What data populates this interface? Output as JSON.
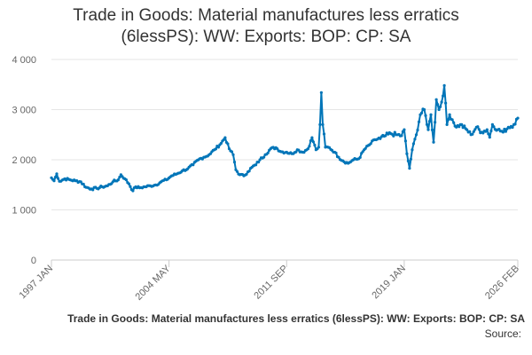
{
  "chart_data": {
    "type": "line",
    "title_line1": "Trade in Goods: Material manufactures less erratics",
    "title_line2": "(6lessPS): WW: Exports: BOP: CP: SA",
    "caption": "Trade in Goods: Material manufactures less erratics (6lessPS): WW: Exports: BOP: CP: SA",
    "source_label": "Source:",
    "ylim": [
      0,
      4000
    ],
    "y_ticks": [
      {
        "value": 0,
        "label": "0"
      },
      {
        "value": 1000,
        "label": "1 000"
      },
      {
        "value": 2000,
        "label": "2 000"
      },
      {
        "value": 3000,
        "label": "3 000"
      },
      {
        "value": 4000,
        "label": "4 000"
      }
    ],
    "x_ticks": [
      {
        "index": 0,
        "label": "1997 JAN"
      },
      {
        "index": 88,
        "label": "2004 MAY"
      },
      {
        "index": 176,
        "label": "2011 SEP"
      },
      {
        "index": 264,
        "label": "2019 JAN"
      },
      {
        "index": 349,
        "label": "2026 FEB"
      }
    ],
    "series": [
      {
        "name": "Trade in Goods: Material manufactures less erratics (6lessPS): WW: Exports: BOP: CP: SA",
        "color": "#0075b8",
        "anchors": [
          [
            0,
            1640
          ],
          [
            2,
            1580
          ],
          [
            4,
            1720
          ],
          [
            6,
            1570
          ],
          [
            10,
            1620
          ],
          [
            14,
            1600
          ],
          [
            18,
            1580
          ],
          [
            22,
            1560
          ],
          [
            26,
            1450
          ],
          [
            30,
            1420
          ],
          [
            34,
            1430
          ],
          [
            38,
            1460
          ],
          [
            42,
            1480
          ],
          [
            46,
            1560
          ],
          [
            50,
            1600
          ],
          [
            52,
            1700
          ],
          [
            55,
            1620
          ],
          [
            58,
            1520
          ],
          [
            61,
            1380
          ],
          [
            63,
            1460
          ],
          [
            66,
            1440
          ],
          [
            70,
            1460
          ],
          [
            74,
            1480
          ],
          [
            78,
            1500
          ],
          [
            82,
            1560
          ],
          [
            86,
            1600
          ],
          [
            90,
            1680
          ],
          [
            94,
            1720
          ],
          [
            98,
            1780
          ],
          [
            102,
            1820
          ],
          [
            106,
            1900
          ],
          [
            110,
            2000
          ],
          [
            114,
            2050
          ],
          [
            118,
            2100
          ],
          [
            122,
            2200
          ],
          [
            126,
            2300
          ],
          [
            130,
            2440
          ],
          [
            133,
            2220
          ],
          [
            136,
            2100
          ],
          [
            138,
            1800
          ],
          [
            141,
            1700
          ],
          [
            144,
            1680
          ],
          [
            147,
            1760
          ],
          [
            150,
            1850
          ],
          [
            153,
            1900
          ],
          [
            156,
            2000
          ],
          [
            160,
            2100
          ],
          [
            164,
            2220
          ],
          [
            168,
            2240
          ],
          [
            172,
            2160
          ],
          [
            176,
            2150
          ],
          [
            180,
            2120
          ],
          [
            184,
            2200
          ],
          [
            188,
            2150
          ],
          [
            192,
            2220
          ],
          [
            195,
            2440
          ],
          [
            198,
            2200
          ],
          [
            200,
            2250
          ],
          [
            201,
            2700
          ],
          [
            202,
            3340
          ],
          [
            203,
            2700
          ],
          [
            205,
            2250
          ],
          [
            208,
            2240
          ],
          [
            212,
            2150
          ],
          [
            215,
            2050
          ],
          [
            218,
            1980
          ],
          [
            222,
            1930
          ],
          [
            226,
            2000
          ],
          [
            230,
            2020
          ],
          [
            234,
            2200
          ],
          [
            238,
            2300
          ],
          [
            242,
            2400
          ],
          [
            246,
            2420
          ],
          [
            250,
            2480
          ],
          [
            254,
            2520
          ],
          [
            258,
            2500
          ],
          [
            262,
            2480
          ],
          [
            264,
            2600
          ],
          [
            266,
            2120
          ],
          [
            268,
            1830
          ],
          [
            270,
            2200
          ],
          [
            273,
            2500
          ],
          [
            276,
            2900
          ],
          [
            279,
            3000
          ],
          [
            282,
            2600
          ],
          [
            284,
            2900
          ],
          [
            286,
            2350
          ],
          [
            288,
            3200
          ],
          [
            290,
            3000
          ],
          [
            292,
            3150
          ],
          [
            294,
            3480
          ],
          [
            296,
            2700
          ],
          [
            298,
            2900
          ],
          [
            300,
            2800
          ],
          [
            303,
            2650
          ],
          [
            306,
            2700
          ],
          [
            310,
            2620
          ],
          [
            314,
            2500
          ],
          [
            318,
            2650
          ],
          [
            322,
            2550
          ],
          [
            326,
            2600
          ],
          [
            328,
            2450
          ],
          [
            330,
            2700
          ],
          [
            334,
            2600
          ],
          [
            338,
            2550
          ],
          [
            342,
            2650
          ],
          [
            346,
            2700
          ],
          [
            349,
            2830
          ]
        ]
      }
    ],
    "n_points": 350,
    "grid": true,
    "legend": "none"
  }
}
